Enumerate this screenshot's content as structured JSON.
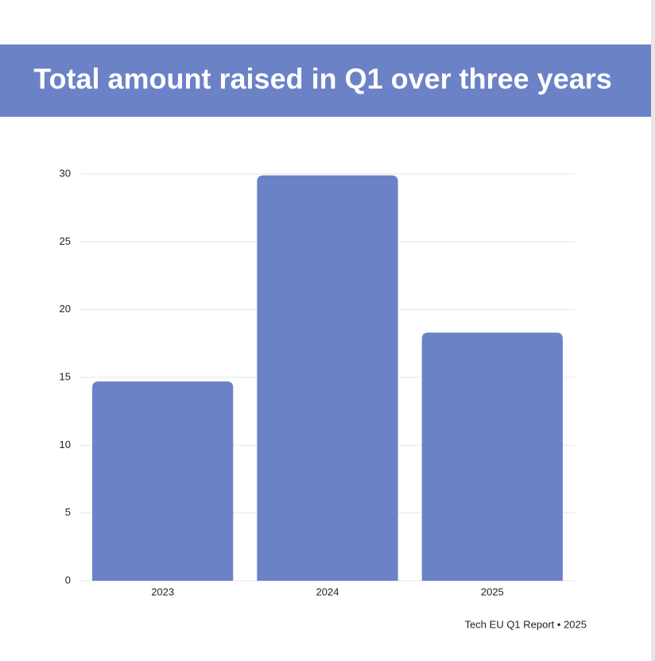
{
  "chart_data": {
    "type": "bar",
    "title": "Total amount raised in Q1 over three years",
    "categories": [
      "2023",
      "2024",
      "2025"
    ],
    "values": [
      14.7,
      29.9,
      18.3
    ],
    "color": "#6b82c7",
    "ylim": [
      0,
      30
    ],
    "yticks": [
      0,
      5,
      10,
      15,
      20,
      25,
      30
    ],
    "grid": true,
    "source": "Tech EU Q1 Report • 2025"
  }
}
